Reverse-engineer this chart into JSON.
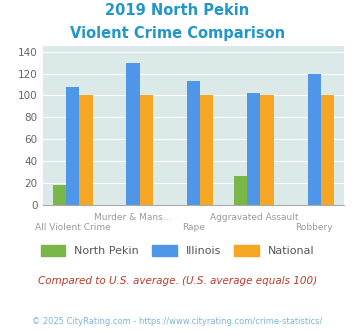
{
  "title_line1": "2019 North Pekin",
  "title_line2": "Violent Crime Comparison",
  "categories": [
    "All Violent Crime",
    "Murder & Mans...",
    "Rape",
    "Aggravated Assault",
    "Robbery"
  ],
  "north_pekin": [
    18,
    null,
    null,
    26,
    null
  ],
  "illinois": [
    108,
    130,
    113,
    102,
    120
  ],
  "national": [
    100,
    100,
    100,
    100,
    100
  ],
  "colors": {
    "north_pekin": "#7ab648",
    "illinois": "#4d96e8",
    "national": "#f5a623"
  },
  "ylim": [
    0,
    145
  ],
  "yticks": [
    0,
    20,
    40,
    60,
    80,
    100,
    120,
    140
  ],
  "title_color": "#2196c8",
  "subtitle": "Compared to U.S. average. (U.S. average equals 100)",
  "subtitle_color": "#c0392b",
  "footer": "© 2025 CityRating.com - https://www.cityrating.com/crime-statistics/",
  "footer_color": "#7ab6d8",
  "bg_color": "#dce9e9",
  "bar_width": 0.22,
  "group_positions": [
    0,
    1,
    2,
    3,
    4
  ]
}
